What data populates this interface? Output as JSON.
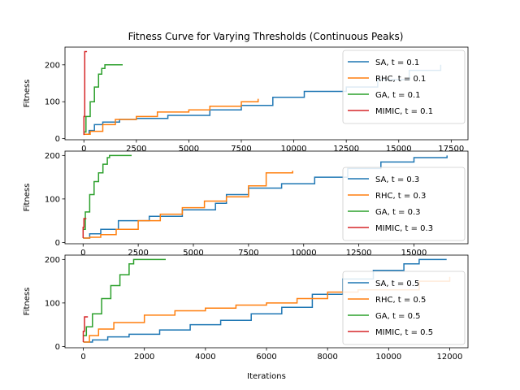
{
  "title": "Fitness Curve for Varying Thresholds (Continuous Peaks)",
  "colors": {
    "SA": "#1f77b4",
    "RHC": "#ff7f0e",
    "GA": "#2ca02c",
    "MIMIC": "#d62728"
  },
  "chart_data": [
    {
      "type": "line",
      "xlabel": "",
      "ylabel": "Fitness",
      "xlim": [
        -900,
        18300
      ],
      "ylim": [
        -3,
        248
      ],
      "xticks": [
        0,
        2500,
        5000,
        7500,
        10000,
        12500,
        15000,
        17500
      ],
      "yticks": [
        0,
        100,
        200
      ],
      "legend_position": "upper right",
      "series": [
        {
          "name": "SA, t = 0.1",
          "key": "SA",
          "x": [
            0,
            250,
            500,
            900,
            1700,
            2500,
            4000,
            6000,
            7500,
            9000,
            10500,
            12500,
            14000,
            15500,
            17000
          ],
          "y": [
            12,
            22,
            38,
            45,
            52,
            55,
            63,
            78,
            90,
            112,
            128,
            140,
            160,
            185,
            200
          ]
        },
        {
          "name": "RHC, t = 0.1",
          "key": "RHC",
          "x": [
            0,
            300,
            900,
            1500,
            2500,
            3500,
            5000,
            6000,
            7500,
            8300
          ],
          "y": [
            12,
            20,
            38,
            52,
            60,
            72,
            78,
            88,
            100,
            108
          ]
        },
        {
          "name": "GA, t = 0.1",
          "key": "GA",
          "x": [
            0,
            100,
            300,
            500,
            700,
            850,
            1000,
            1850
          ],
          "y": [
            18,
            60,
            100,
            140,
            175,
            190,
            200,
            200
          ]
        },
        {
          "name": "MIMIC, t = 0.1",
          "key": "MIMIC",
          "x": [
            0,
            0,
            40,
            40,
            150
          ],
          "y": [
            10,
            60,
            60,
            236,
            236
          ]
        }
      ],
      "legend": [
        "SA, t = 0.1",
        "RHC, t = 0.1",
        "GA, t = 0.1",
        "MIMIC, t = 0.1"
      ]
    },
    {
      "type": "line",
      "xlabel": "",
      "ylabel": "Fitness",
      "xlim": [
        -820,
        17450
      ],
      "ylim": [
        -3,
        210
      ],
      "xticks": [
        0,
        2500,
        5000,
        7500,
        10000,
        12500,
        15000
      ],
      "yticks": [
        0,
        100,
        200
      ],
      "legend_position": "lower right",
      "series": [
        {
          "name": "SA, t = 0.3",
          "key": "SA",
          "x": [
            0,
            300,
            800,
            1600,
            3000,
            4500,
            6000,
            6500,
            7500,
            9000,
            10500,
            12000,
            13500,
            15000,
            16500
          ],
          "y": [
            10,
            20,
            30,
            50,
            60,
            75,
            90,
            110,
            125,
            135,
            150,
            170,
            185,
            195,
            200
          ]
        },
        {
          "name": "RHC, t = 0.3",
          "key": "RHC",
          "x": [
            0,
            300,
            800,
            1500,
            2500,
            3500,
            4500,
            5500,
            6500,
            7500,
            8300,
            9500
          ],
          "y": [
            10,
            12,
            18,
            30,
            50,
            65,
            80,
            95,
            105,
            130,
            160,
            165
          ]
        },
        {
          "name": "GA, t = 0.3",
          "key": "GA",
          "x": [
            0,
            100,
            300,
            500,
            700,
            900,
            1100,
            1200,
            2200
          ],
          "y": [
            30,
            70,
            110,
            140,
            160,
            180,
            195,
            200,
            200
          ]
        },
        {
          "name": "MIMIC, t = 0.3",
          "key": "MIMIC",
          "x": [
            0,
            0,
            40,
            40,
            150
          ],
          "y": [
            10,
            35,
            35,
            55,
            55
          ]
        }
      ],
      "legend": [
        "SA, t = 0.3",
        "RHC, t = 0.3",
        "GA, t = 0.3",
        "MIMIC, t = 0.3"
      ]
    },
    {
      "type": "line",
      "xlabel": "Iterations",
      "ylabel": "Fitness",
      "xlim": [
        -600,
        12600
      ],
      "ylim": [
        -3,
        210
      ],
      "xticks": [
        0,
        2000,
        4000,
        6000,
        8000,
        10000,
        12000
      ],
      "yticks": [
        0,
        100,
        200
      ],
      "legend_position": "lower right",
      "series": [
        {
          "name": "SA, t = 0.5",
          "key": "SA",
          "x": [
            0,
            300,
            800,
            1500,
            2500,
            3500,
            4500,
            5500,
            6500,
            7500,
            8500,
            9500,
            10500,
            11000,
            11900
          ],
          "y": [
            10,
            15,
            22,
            28,
            38,
            50,
            60,
            75,
            90,
            120,
            155,
            175,
            190,
            200,
            200
          ]
        },
        {
          "name": "RHC, t = 0.5",
          "key": "RHC",
          "x": [
            0,
            200,
            500,
            1000,
            2000,
            3000,
            4000,
            5000,
            6000,
            7000,
            8000,
            9000,
            10000,
            11000,
            12000
          ],
          "y": [
            10,
            25,
            40,
            55,
            72,
            82,
            88,
            95,
            100,
            110,
            125,
            130,
            130,
            150,
            160
          ]
        },
        {
          "name": "GA, t = 0.5",
          "key": "GA",
          "x": [
            0,
            100,
            300,
            600,
            900,
            1200,
            1500,
            1650,
            2700
          ],
          "y": [
            25,
            45,
            75,
            110,
            140,
            165,
            190,
            200,
            200
          ]
        },
        {
          "name": "MIMIC, t = 0.5",
          "key": "MIMIC",
          "x": [
            0,
            0,
            40,
            40,
            150
          ],
          "y": [
            10,
            35,
            35,
            68,
            68
          ]
        }
      ],
      "legend": [
        "SA, t = 0.5",
        "RHC, t = 0.5",
        "GA, t = 0.5",
        "MIMIC, t = 0.5"
      ]
    }
  ]
}
